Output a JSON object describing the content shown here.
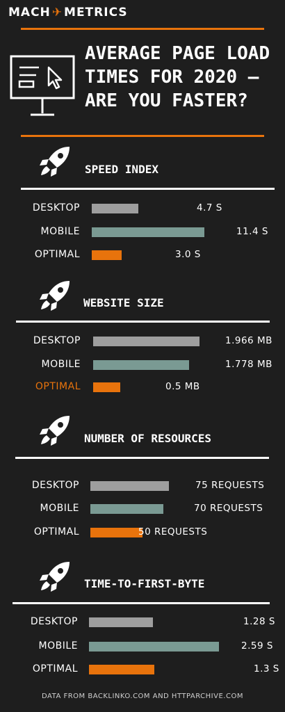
{
  "brand": {
    "left": "MACH",
    "right": "METRICS",
    "accent": "#e8730c"
  },
  "title_lines": [
    "AVERAGE PAGE LOAD",
    "TIMES FOR 2020 –",
    "ARE YOU FASTER?"
  ],
  "footer": "DATA FROM BACKLINKO.COM AND HTTPARCHIVE.COM",
  "colors": {
    "desktop": "#9e9e9e",
    "mobile": "#7a9a93",
    "optimal": "#e8730c",
    "background": "#1e1e1e"
  },
  "icons": {
    "header": "monitor-cursor-icon",
    "section": "rocket-icon"
  },
  "chart_data": [
    {
      "type": "bar",
      "title": "SPEED INDEX",
      "categories": [
        "DESKTOP",
        "MOBILE",
        "OPTIMAL"
      ],
      "values": [
        4.7,
        11.4,
        3.0
      ],
      "value_labels": [
        "4.7 S",
        "11.4 S",
        "3.0 S"
      ]
    },
    {
      "type": "bar",
      "title": "WEBSITE SIZE",
      "categories": [
        "DESKTOP",
        "MOBILE",
        "OPTIMAL"
      ],
      "values": [
        1.966,
        1.778,
        0.5
      ],
      "value_labels": [
        "1.966 MB",
        "1.778 MB",
        "0.5 MB"
      ]
    },
    {
      "type": "bar",
      "title": "NUMBER OF RESOURCES",
      "categories": [
        "DESKTOP",
        "MOBILE",
        "OPTIMAL"
      ],
      "values": [
        75,
        70,
        50
      ],
      "value_labels": [
        "75 REQUESTS",
        "70 REQUESTS",
        "50 REQUESTS"
      ]
    },
    {
      "type": "bar",
      "title": "TIME-TO-FIRST-BYTE",
      "categories": [
        "DESKTOP",
        "MOBILE",
        "OPTIMAL"
      ],
      "values": [
        1.28,
        2.59,
        1.3
      ],
      "value_labels": [
        "1.28 S",
        "2.59 S",
        "1.3 S"
      ]
    }
  ]
}
